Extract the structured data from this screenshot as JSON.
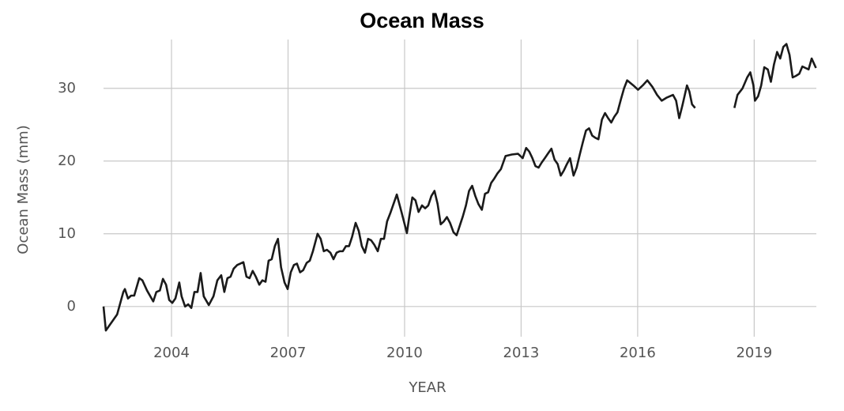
{
  "chart_data": {
    "type": "line",
    "title": "Ocean Mass",
    "x_label": "YEAR",
    "y_label": "Ocean Mass (mm)",
    "grid": true,
    "xlim": [
      2002.25,
      2020.6
    ],
    "ylim": [
      -3.5,
      37.8
    ],
    "xticks": [
      2004,
      2007,
      2010,
      2013,
      2016,
      2019
    ],
    "yticks": [
      0,
      10,
      20,
      30
    ],
    "x": [
      2002.25,
      2002.31,
      2002.6,
      2002.76,
      2002.8,
      2002.88,
      2002.96,
      2003.04,
      2003.17,
      2003.25,
      2003.37,
      2003.53,
      2003.61,
      2003.7,
      2003.78,
      2003.86,
      2003.94,
      2004.02,
      2004.1,
      2004.2,
      2004.26,
      2004.35,
      2004.43,
      2004.51,
      2004.59,
      2004.67,
      2004.75,
      2004.83,
      2004.96,
      2005.08,
      2005.18,
      2005.28,
      2005.36,
      2005.44,
      2005.52,
      2005.6,
      2005.69,
      2005.77,
      2005.85,
      2005.93,
      2006.01,
      2006.09,
      2006.17,
      2006.26,
      2006.34,
      2006.42,
      2006.5,
      2006.58,
      2006.66,
      2006.74,
      2006.82,
      2006.91,
      2006.99,
      2007.07,
      2007.15,
      2007.23,
      2007.31,
      2007.39,
      2007.48,
      2007.56,
      2007.64,
      2007.76,
      2007.84,
      2007.92,
      2008.0,
      2008.09,
      2008.17,
      2008.25,
      2008.33,
      2008.41,
      2008.49,
      2008.57,
      2008.65,
      2008.74,
      2008.82,
      2008.9,
      2008.98,
      2009.06,
      2009.14,
      2009.22,
      2009.31,
      2009.39,
      2009.47,
      2009.55,
      2009.63,
      2009.8,
      2009.92,
      2010.06,
      2010.12,
      2010.2,
      2010.28,
      2010.36,
      2010.45,
      2010.53,
      2010.61,
      2010.69,
      2010.77,
      2010.85,
      2010.93,
      2011.01,
      2011.09,
      2011.17,
      2011.26,
      2011.34,
      2011.42,
      2011.5,
      2011.58,
      2011.66,
      2011.74,
      2011.82,
      2011.9,
      2011.99,
      2012.07,
      2012.15,
      2012.23,
      2012.31,
      2012.39,
      2012.48,
      2012.6,
      2012.76,
      2012.92,
      2013.04,
      2013.13,
      2013.21,
      2013.29,
      2013.37,
      2013.45,
      2013.53,
      2013.61,
      2013.7,
      2013.78,
      2013.86,
      2013.94,
      2014.02,
      2014.1,
      2014.18,
      2014.26,
      2014.35,
      2014.43,
      2014.51,
      2014.59,
      2014.67,
      2014.75,
      2014.83,
      2014.91,
      2014.99,
      2015.08,
      2015.16,
      2015.24,
      2015.32,
      2015.4,
      2015.48,
      2015.57,
      2015.65,
      2015.73,
      2015.89,
      2016.01,
      2016.13,
      2016.25,
      2016.38,
      2016.5,
      2016.62,
      2016.74,
      2016.91,
      2016.99,
      2017.07,
      2017.15,
      2017.27,
      2017.33,
      2017.4,
      2017.48,
      null,
      2018.49,
      2018.57,
      2018.7,
      2018.82,
      2018.9,
      2018.98,
      2019.02,
      2019.1,
      2019.18,
      2019.26,
      2019.35,
      2019.43,
      2019.51,
      2019.59,
      2019.67,
      2019.75,
      2019.83,
      2019.91,
      2019.99,
      2020.07,
      2020.16,
      2020.24,
      2020.32,
      2020.4,
      2020.48,
      2020.59
    ],
    "series": [
      {
        "name": "Ocean Mass",
        "color": "#1a1a1a",
        "values": [
          0,
          -3.3,
          -1.1,
          2.0,
          2.4,
          1.1,
          1.5,
          1.5,
          3.9,
          3.6,
          2.2,
          0.7,
          2.0,
          2.2,
          3.8,
          3.0,
          0.9,
          0.5,
          1.1,
          3.3,
          1.4,
          0,
          0.3,
          -0.2,
          2.0,
          2.0,
          4.6,
          1.4,
          0.2,
          1.4,
          3.6,
          4.3,
          2.0,
          3.9,
          4.1,
          5.2,
          5.7,
          5.9,
          6.1,
          4.1,
          3.9,
          4.9,
          4.1,
          3.0,
          3.6,
          3.4,
          6.3,
          6.5,
          8.3,
          9.3,
          5.4,
          3.3,
          2.4,
          4.7,
          5.7,
          5.9,
          4.7,
          5.0,
          6.0,
          6.3,
          7.6,
          10.0,
          9.3,
          7.6,
          7.8,
          7.4,
          6.5,
          7.4,
          7.6,
          7.6,
          8.3,
          8.3,
          9.6,
          11.5,
          10.4,
          8.3,
          7.4,
          9.3,
          9.1,
          8.5,
          7.6,
          9.3,
          9.3,
          11.7,
          12.8,
          15.4,
          13.0,
          10.1,
          12.3,
          15.0,
          14.6,
          13.0,
          13.9,
          13.5,
          13.9,
          15.2,
          15.9,
          14.1,
          11.3,
          11.7,
          12.3,
          11.5,
          10.2,
          9.8,
          11.1,
          12.4,
          13.9,
          15.9,
          16.6,
          15.2,
          14.1,
          13.3,
          15.5,
          15.7,
          17.0,
          17.6,
          18.3,
          18.9,
          20.7,
          20.9,
          21.0,
          20.4,
          21.8,
          21.3,
          20.4,
          19.3,
          19.1,
          19.8,
          20.4,
          21.1,
          21.7,
          20.2,
          19.6,
          18.0,
          18.7,
          19.6,
          20.4,
          18.0,
          19.1,
          20.9,
          22.6,
          24.2,
          24.5,
          23.5,
          23.2,
          23.0,
          25.7,
          26.6,
          25.9,
          25.3,
          26.1,
          26.7,
          28.5,
          30.0,
          31.1,
          30.4,
          29.8,
          30.4,
          31.1,
          30.2,
          29.1,
          28.3,
          28.7,
          29.1,
          28.3,
          25.9,
          27.6,
          30.4,
          29.6,
          27.8,
          27.3,
          null,
          27.3,
          29.1,
          30.0,
          31.5,
          32.2,
          30.4,
          28.3,
          28.9,
          30.4,
          32.9,
          32.6,
          30.9,
          33.3,
          35.0,
          34.1,
          35.7,
          36.1,
          34.6,
          31.5,
          31.7,
          32.0,
          33.0,
          32.8,
          32.6,
          34.1,
          32.8
        ]
      }
    ]
  }
}
